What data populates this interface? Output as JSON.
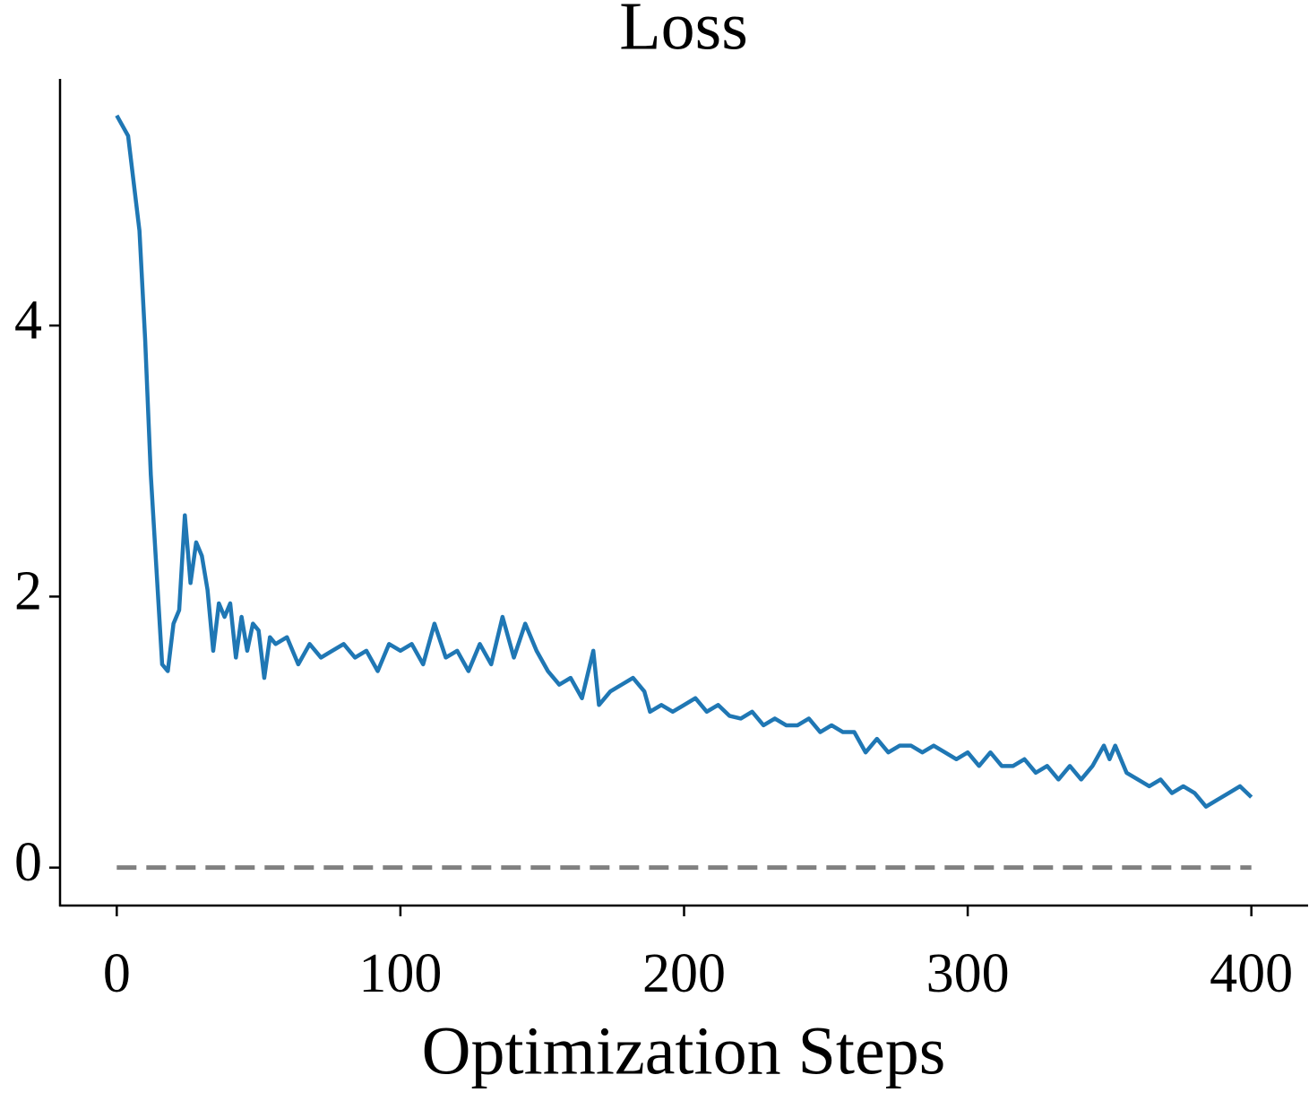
{
  "chart_data": {
    "type": "line",
    "title": "Loss",
    "x_label": "Optimization Steps",
    "xlim": [
      -20,
      420
    ],
    "ylim": [
      -0.28,
      5.82
    ],
    "xticks": [
      0,
      100,
      200,
      300,
      400
    ],
    "yticks": [
      0,
      2,
      4
    ],
    "hline": {
      "value": 0,
      "color": "#808080"
    },
    "series": [
      {
        "color": "#1f77b4",
        "x": [
          0,
          4,
          8,
          10,
          12,
          14,
          16,
          18,
          20,
          22,
          24,
          26,
          28,
          30,
          32,
          34,
          36,
          38,
          40,
          42,
          44,
          46,
          48,
          50,
          52,
          54,
          56,
          60,
          64,
          68,
          72,
          76,
          80,
          84,
          88,
          92,
          96,
          100,
          104,
          108,
          112,
          116,
          120,
          124,
          128,
          132,
          136,
          140,
          144,
          148,
          152,
          156,
          160,
          164,
          168,
          170,
          174,
          178,
          182,
          186,
          188,
          192,
          196,
          200,
          204,
          208,
          212,
          216,
          220,
          224,
          228,
          232,
          236,
          240,
          244,
          248,
          252,
          256,
          260,
          264,
          268,
          272,
          276,
          280,
          284,
          288,
          292,
          296,
          300,
          304,
          308,
          312,
          316,
          320,
          324,
          328,
          332,
          336,
          340,
          344,
          348,
          350,
          352,
          356,
          360,
          364,
          368,
          372,
          376,
          380,
          384,
          388,
          392,
          396,
          400
        ],
        "values": [
          5.55,
          5.4,
          4.7,
          3.9,
          2.9,
          2.2,
          1.5,
          1.45,
          1.8,
          1.9,
          2.6,
          2.1,
          2.4,
          2.3,
          2.05,
          1.6,
          1.95,
          1.85,
          1.95,
          1.55,
          1.85,
          1.6,
          1.8,
          1.75,
          1.4,
          1.7,
          1.65,
          1.7,
          1.5,
          1.65,
          1.55,
          1.6,
          1.65,
          1.55,
          1.6,
          1.45,
          1.65,
          1.6,
          1.65,
          1.5,
          1.8,
          1.55,
          1.6,
          1.45,
          1.65,
          1.5,
          1.85,
          1.55,
          1.8,
          1.6,
          1.45,
          1.35,
          1.4,
          1.25,
          1.6,
          1.2,
          1.3,
          1.35,
          1.4,
          1.3,
          1.15,
          1.2,
          1.15,
          1.2,
          1.25,
          1.15,
          1.2,
          1.12,
          1.1,
          1.15,
          1.05,
          1.1,
          1.05,
          1.05,
          1.1,
          1.0,
          1.05,
          1.0,
          1.0,
          0.85,
          0.95,
          0.85,
          0.9,
          0.9,
          0.85,
          0.9,
          0.85,
          0.8,
          0.85,
          0.75,
          0.85,
          0.75,
          0.75,
          0.8,
          0.7,
          0.75,
          0.65,
          0.75,
          0.65,
          0.75,
          0.9,
          0.8,
          0.9,
          0.7,
          0.65,
          0.6,
          0.65,
          0.55,
          0.6,
          0.55,
          0.45,
          0.5,
          0.55,
          0.6,
          0.52
        ]
      }
    ]
  }
}
